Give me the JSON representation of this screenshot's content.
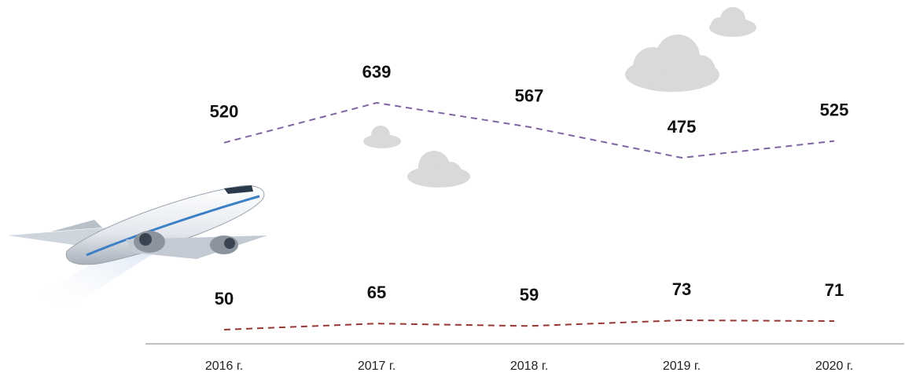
{
  "chart_data": {
    "type": "line",
    "categories": [
      "2016 г.",
      "2017 г.",
      "2018 г.",
      "2019 г.",
      "2020 г."
    ],
    "series": [
      {
        "color": "#8064a2",
        "values": [
          520,
          639,
          567,
          475,
          525
        ]
      },
      {
        "color": "#953735",
        "values": [
          50,
          65,
          59,
          73,
          71
        ]
      }
    ]
  }
}
